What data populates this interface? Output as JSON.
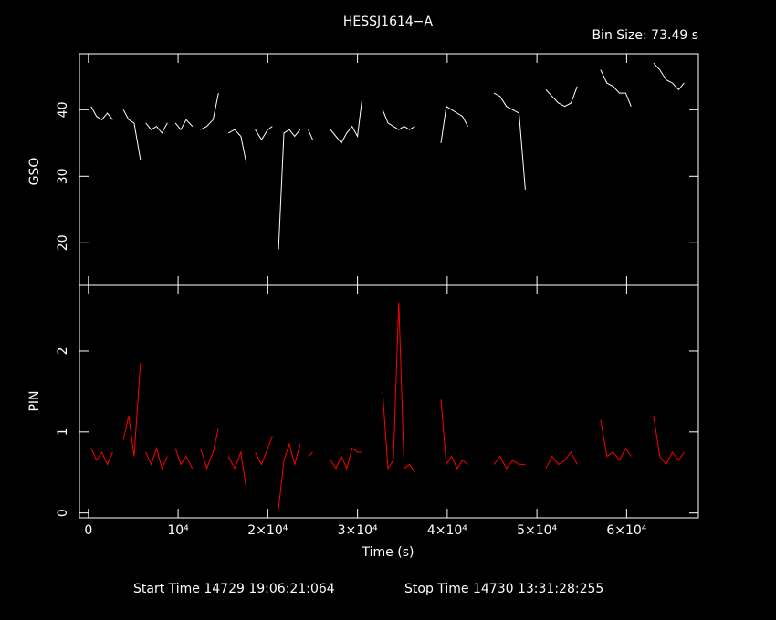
{
  "chart_data": [
    {
      "type": "line",
      "title": "HESSJ1614−A",
      "annotations": [
        "Bin Size: 73.49 s",
        "Start Time 14729 19:06:21:064",
        "Stop Time 14730 13:31:28:255"
      ],
      "ylabel": "GSO",
      "xlim": [
        -1000,
        68000
      ],
      "ylim": [
        13.6,
        48.4
      ],
      "yticks": [
        20,
        30,
        40
      ],
      "x": [
        300,
        900,
        1500,
        2100,
        2700,
        3300,
        3900,
        4500,
        5100,
        5800,
        6100,
        6400,
        7000,
        7600,
        8200,
        8800,
        9200,
        9700,
        10300,
        10900,
        11600,
        12000,
        12500,
        13200,
        13900,
        14500,
        15000,
        15600,
        16300,
        17000,
        17600,
        18100,
        18600,
        19300,
        20000,
        20500,
        20900,
        21200,
        21800,
        22400,
        23000,
        23600,
        24100,
        24500,
        25000,
        25600,
        27000,
        27600,
        28200,
        28800,
        29400,
        30000,
        30500,
        31000,
        32800,
        33400,
        34000,
        34600,
        35200,
        35800,
        36400,
        37000,
        39300,
        39900,
        40500,
        41100,
        41700,
        42300,
        43000,
        45200,
        45900,
        46600,
        47300,
        48000,
        48700,
        49300,
        51000,
        51700,
        52400,
        53100,
        53800,
        54500,
        55100,
        57100,
        57800,
        58500,
        59200,
        59900,
        60500,
        61200,
        63000,
        63700,
        64400,
        65100,
        65800,
        66400
      ],
      "series": [
        {
          "name": "GSO",
          "color": "#ffffff",
          "values": [
            40.5,
            39,
            38.5,
            39.5,
            38.5,
            null,
            40,
            38.5,
            38,
            32.5,
            null,
            38,
            37,
            37.5,
            36.5,
            38,
            null,
            38,
            37,
            38.5,
            37.5,
            null,
            37,
            37.5,
            38.5,
            42.5,
            null,
            36.5,
            37,
            36,
            32,
            null,
            37,
            35.5,
            37,
            37.5,
            null,
            19,
            36.5,
            37,
            36,
            37,
            null,
            37,
            35.5,
            null,
            37,
            36,
            35,
            36.5,
            37.5,
            36,
            41.5,
            null,
            40,
            38,
            37.5,
            37,
            37.5,
            37,
            37.5,
            null,
            35,
            40.5,
            40,
            39.5,
            39,
            37.5,
            null,
            42.5,
            42,
            40.5,
            40,
            39.5,
            28,
            null,
            43,
            42,
            41,
            40.5,
            41,
            43.5,
            null,
            46,
            44,
            43.5,
            42.5,
            42.5,
            40.5,
            null,
            47,
            46,
            44.5,
            44,
            43,
            44
          ]
        }
      ]
    },
    {
      "type": "line",
      "ylabel": "PIN",
      "xlabel": "Time (s)",
      "xlim": [
        -1000,
        68000
      ],
      "ylim": [
        -0.06,
        2.81
      ],
      "yticks": [
        0,
        1,
        2
      ],
      "xticks": [
        0,
        {
          "value": 10000,
          "label": "10⁴"
        },
        {
          "value": 20000,
          "label": "2×10⁴"
        },
        {
          "value": 30000,
          "label": "3×10⁴"
        },
        {
          "value": 40000,
          "label": "4×10⁴"
        },
        {
          "value": 50000,
          "label": "5×10⁴"
        },
        {
          "value": 60000,
          "label": "6×10⁴"
        }
      ],
      "x": [
        300,
        900,
        1500,
        2100,
        2700,
        3300,
        3900,
        4500,
        5100,
        5800,
        6100,
        6400,
        7000,
        7600,
        8200,
        8800,
        9200,
        9700,
        10300,
        10900,
        11600,
        12000,
        12500,
        13200,
        13900,
        14500,
        15000,
        15600,
        16300,
        17000,
        17600,
        18100,
        18600,
        19300,
        20000,
        20500,
        20900,
        21200,
        21800,
        22400,
        23000,
        23600,
        24100,
        24500,
        25000,
        25600,
        27000,
        27600,
        28200,
        28800,
        29400,
        30000,
        30500,
        31000,
        32800,
        33400,
        34000,
        34600,
        35200,
        35800,
        36400,
        37000,
        39300,
        39900,
        40500,
        41100,
        41700,
        42300,
        43000,
        45200,
        45900,
        46600,
        47300,
        48000,
        48700,
        49300,
        51000,
        51700,
        52400,
        53100,
        53800,
        54500,
        55100,
        57100,
        57800,
        58500,
        59200,
        59900,
        60500,
        61200,
        63000,
        63700,
        64400,
        65100,
        65800,
        66400
      ],
      "series": [
        {
          "name": "PIN",
          "color": "#ff0000",
          "values": [
            0.8,
            0.65,
            0.75,
            0.6,
            0.75,
            null,
            0.9,
            1.2,
            0.7,
            1.85,
            null,
            0.75,
            0.6,
            0.8,
            0.55,
            0.7,
            null,
            0.8,
            0.6,
            0.7,
            0.55,
            null,
            0.8,
            0.55,
            0.75,
            1.05,
            null,
            0.7,
            0.55,
            0.75,
            0.3,
            null,
            0.75,
            0.6,
            0.8,
            0.95,
            null,
            0.05,
            0.65,
            0.85,
            0.6,
            0.85,
            null,
            0.7,
            0.75,
            null,
            0.65,
            0.55,
            0.7,
            0.55,
            0.8,
            0.75,
            0.75,
            null,
            1.5,
            0.55,
            0.65,
            2.6,
            0.55,
            0.6,
            0.5,
            null,
            1.4,
            0.6,
            0.7,
            0.55,
            0.65,
            0.6,
            null,
            0.6,
            0.7,
            0.55,
            0.65,
            0.6,
            0.6,
            null,
            0.55,
            0.7,
            0.6,
            0.65,
            0.75,
            0.6,
            null,
            1.15,
            0.7,
            0.75,
            0.65,
            0.8,
            0.7,
            null,
            1.2,
            0.7,
            0.6,
            0.75,
            0.65,
            0.75
          ]
        }
      ]
    }
  ]
}
